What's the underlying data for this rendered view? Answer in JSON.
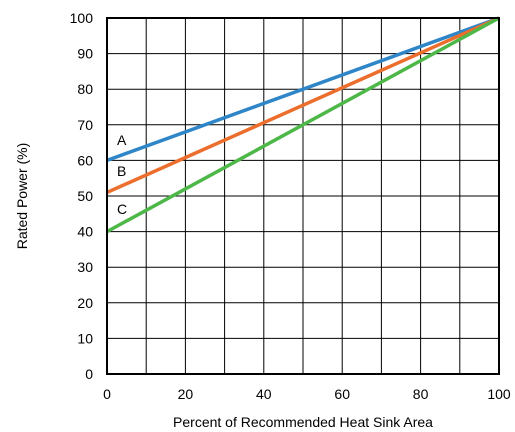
{
  "chart_data": {
    "type": "line",
    "title": "",
    "xlabel": "Percent of Recommended Heat Sink Area",
    "ylabel": "Rated Power (%)",
    "xlim": [
      0,
      100
    ],
    "ylim": [
      0,
      100
    ],
    "x_ticks": [
      "0",
      "20",
      "40",
      "60",
      "80",
      "100"
    ],
    "y_ticks": [
      "0",
      "10",
      "20",
      "30",
      "40",
      "50",
      "60",
      "70",
      "80",
      "90",
      "100"
    ],
    "grid": true,
    "series": [
      {
        "name": "A",
        "color": "#2E86C8",
        "x": [
          0,
          100
        ],
        "y": [
          60,
          100
        ]
      },
      {
        "name": "B",
        "color": "#EC6E2C",
        "x": [
          0,
          100
        ],
        "y": [
          51,
          100
        ]
      },
      {
        "name": "C",
        "color": "#4DB848",
        "x": [
          0,
          100
        ],
        "y": [
          40,
          100
        ]
      }
    ]
  }
}
